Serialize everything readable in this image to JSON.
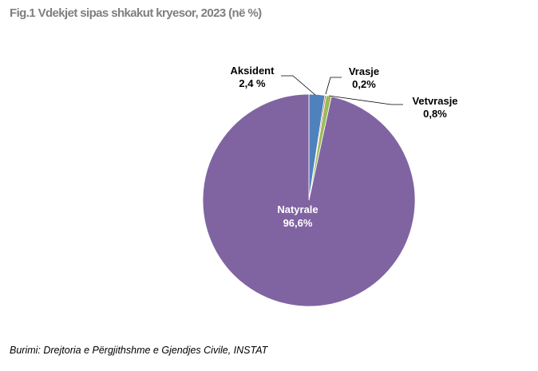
{
  "title": "Fig.1 Vdekjet sipas shkakut kryesor, 2023 (në %)",
  "source": "Burimi: Drejtoria e Përgjithshme e Gjendjes Civile, INSTAT",
  "chart_data": {
    "type": "pie",
    "title": "Fig.1 Vdekjet sipas shkakut kryesor, 2023 (në %)",
    "start_angle_deg": 0,
    "direction": "clockwise",
    "slices": [
      {
        "name": "Aksident",
        "value": 2.4,
        "label": "2,4 %",
        "color": "#4f81bd"
      },
      {
        "name": "Vrasje",
        "value": 0.2,
        "label": "0,2%",
        "color": "#c0504d"
      },
      {
        "name": "Vetvrasje",
        "value": 0.8,
        "label": "0,8%",
        "color": "#9bbb59"
      },
      {
        "name": "Natyrale",
        "value": 96.6,
        "label": "96,6%",
        "color": "#8064a2"
      }
    ]
  }
}
